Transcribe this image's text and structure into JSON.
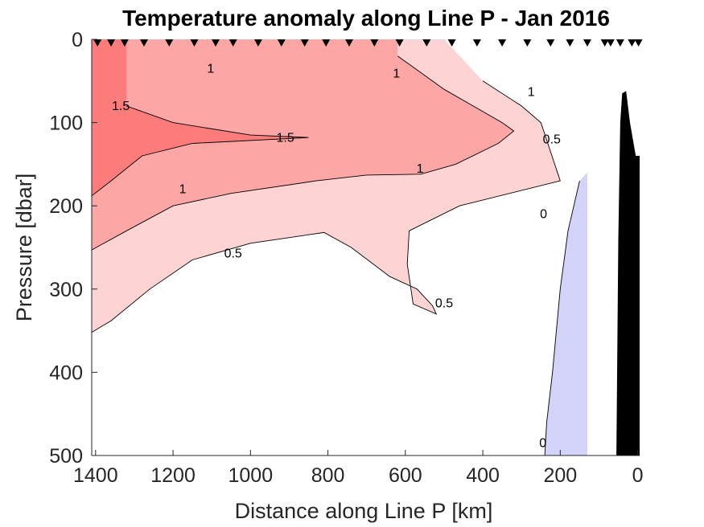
{
  "chart_data": {
    "type": "contour",
    "title": "Temperature anomaly along Line P - Jan 2016",
    "xlabel": "Distance along Line P [km]",
    "ylabel": "Pressure [dbar]",
    "xlim": [
      1410,
      -5
    ],
    "ylim": [
      500,
      0
    ],
    "x_reversed": true,
    "y_reversed": true,
    "x_ticks": [
      1400,
      1200,
      1000,
      800,
      600,
      400,
      200,
      0
    ],
    "y_ticks": [
      0,
      100,
      200,
      300,
      400,
      500
    ],
    "grid": false,
    "contour_levels": [
      0,
      0.5,
      1,
      1.5
    ],
    "level_colors": {
      "negative": "#d3d3fa",
      "0-0.5": "#ffffff",
      "0.5-1": "#fdd3d3",
      "1-1.5": "#fda6a6",
      "gt-1.5": "#fc7c7c",
      "bathymetry": "#000000"
    },
    "regions": [
      {
        "range": "0.5-1",
        "outline": [
          [
            1410,
            352
          ],
          [
            1360,
            338
          ],
          [
            1260,
            300
          ],
          [
            1150,
            265
          ],
          [
            1000,
            245
          ],
          [
            810,
            232
          ],
          [
            740,
            250
          ],
          [
            640,
            285
          ],
          [
            570,
            300
          ],
          [
            530,
            320
          ],
          [
            520,
            330
          ],
          [
            580,
            318
          ],
          [
            595,
            270
          ],
          [
            590,
            230
          ],
          [
            460,
            200
          ],
          [
            200,
            170
          ],
          [
            250,
            100
          ],
          [
            300,
            80
          ],
          [
            400,
            50
          ],
          [
            500,
            0
          ],
          [
            1410,
            0
          ]
        ]
      },
      {
        "range": "1-1.5",
        "outline": [
          [
            1410,
            253
          ],
          [
            1320,
            230
          ],
          [
            1200,
            200
          ],
          [
            1050,
            185
          ],
          [
            830,
            170
          ],
          [
            700,
            163
          ],
          [
            560,
            162
          ],
          [
            470,
            150
          ],
          [
            360,
            125
          ],
          [
            320,
            110
          ],
          [
            350,
            100
          ],
          [
            500,
            60
          ],
          [
            620,
            20
          ],
          [
            620,
            0
          ],
          [
            1410,
            0
          ]
        ]
      },
      {
        "range": "gt-1.5",
        "outline": [
          [
            1410,
            188
          ],
          [
            1360,
            170
          ],
          [
            1280,
            140
          ],
          [
            1150,
            125
          ],
          [
            850,
            118
          ],
          [
            1000,
            115
          ],
          [
            1200,
            100
          ],
          [
            1320,
            80
          ],
          [
            1320,
            0
          ],
          [
            1410,
            0
          ]
        ]
      },
      {
        "range": "negative",
        "outline": [
          [
            130,
            160
          ],
          [
            130,
            500
          ],
          [
            240,
            500
          ],
          [
            235,
            460
          ],
          [
            220,
            400
          ],
          [
            200,
            300
          ],
          [
            180,
            230
          ],
          [
            150,
            170
          ]
        ]
      }
    ],
    "contour_labels": [
      {
        "text": "1.5",
        "x": 1335,
        "y": 85
      },
      {
        "text": "1.5",
        "x": 910,
        "y": 123
      },
      {
        "text": "1",
        "x": 1103,
        "y": 40
      },
      {
        "text": "1",
        "x": 623,
        "y": 46
      },
      {
        "text": "1",
        "x": 1175,
        "y": 185
      },
      {
        "text": "1",
        "x": 562,
        "y": 160
      },
      {
        "text": "1",
        "x": 275,
        "y": 68
      },
      {
        "text": "0.5",
        "x": 1045,
        "y": 262
      },
      {
        "text": "0.5",
        "x": 500,
        "y": 322
      },
      {
        "text": "0.5",
        "x": 222,
        "y": 125
      },
      {
        "text": "0",
        "x": 243,
        "y": 215
      },
      {
        "text": "0",
        "x": 245,
        "y": 490
      }
    ],
    "station_markers_km": [
      1395,
      1360,
      1325,
      1275,
      1210,
      1145,
      1090,
      1045,
      980,
      920,
      860,
      805,
      745,
      680,
      615,
      545,
      480,
      415,
      350,
      285,
      225,
      175,
      130,
      85,
      70,
      45,
      15,
      -2
    ],
    "bathymetry_outline": [
      [
        55,
        500
      ],
      [
        50,
        240
      ],
      [
        45,
        100
      ],
      [
        40,
        65
      ],
      [
        30,
        62
      ],
      [
        20,
        100
      ],
      [
        5,
        140
      ],
      [
        -5,
        140
      ],
      [
        -5,
        500
      ]
    ]
  }
}
